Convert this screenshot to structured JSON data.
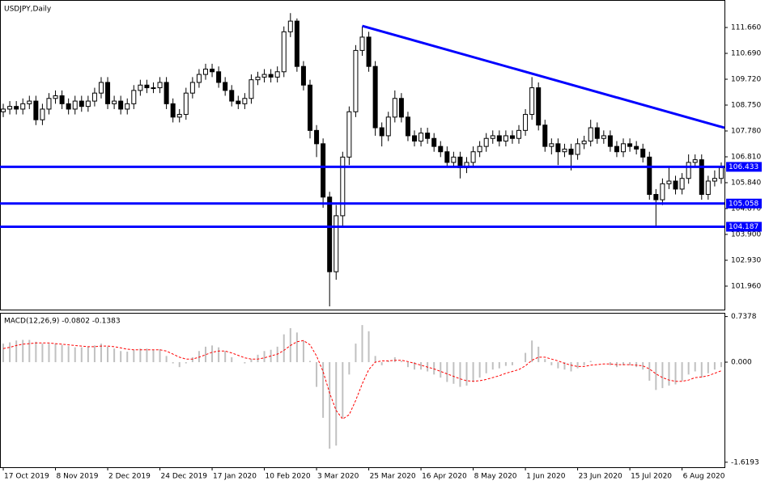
{
  "chart_data": {
    "type": "candlestick",
    "title": "USDJPY,Daily",
    "dates": [
      "17 Oct 2019",
      null,
      null,
      null,
      null,
      null,
      null,
      null,
      "8 Nov 2019",
      null,
      null,
      null,
      null,
      null,
      null,
      null,
      "2 Dec 2019",
      null,
      null,
      null,
      null,
      null,
      null,
      null,
      "24 Dec 2019",
      null,
      null,
      null,
      null,
      null,
      null,
      null,
      "17 Jan 2020",
      null,
      null,
      null,
      null,
      null,
      null,
      null,
      "10 Feb 2020",
      null,
      null,
      null,
      null,
      null,
      null,
      null,
      "3 Mar 2020",
      null,
      null,
      null,
      null,
      null,
      null,
      null,
      "25 Mar 2020",
      null,
      null,
      null,
      null,
      null,
      null,
      null,
      "16 Apr 2020",
      null,
      null,
      null,
      null,
      null,
      null,
      null,
      "8 May 2020",
      null,
      null,
      null,
      null,
      null,
      null,
      null,
      "1 Jun 2020",
      null,
      null,
      null,
      null,
      null,
      null,
      null,
      "23 Jun 2020",
      null,
      null,
      null,
      null,
      null,
      null,
      null,
      "15 Jul 2020",
      null,
      null,
      null,
      null,
      null,
      null,
      null,
      "6 Aug 2020",
      null,
      null,
      null,
      null,
      null,
      null
    ],
    "open": [
      108.5,
      108.6,
      108.7,
      108.6,
      108.8,
      108.9,
      108.2,
      108.6,
      109.0,
      109.1,
      108.8,
      108.6,
      108.9,
      108.7,
      108.9,
      109.2,
      109.6,
      108.8,
      108.9,
      108.6,
      108.8,
      109.3,
      109.5,
      109.4,
      109.4,
      109.6,
      108.8,
      108.3,
      108.4,
      109.2,
      109.6,
      109.9,
      110.1,
      110.0,
      109.6,
      109.3,
      108.9,
      108.8,
      109.0,
      109.7,
      109.8,
      109.9,
      109.8,
      110.0,
      111.5,
      111.9,
      110.2,
      109.5,
      107.8,
      107.3,
      105.3,
      102.5,
      104.6,
      106.8,
      108.5,
      110.8,
      111.3,
      110.2,
      107.9,
      107.6,
      108.3,
      109.0,
      108.3,
      107.6,
      107.4,
      107.7,
      107.5,
      107.2,
      107.0,
      106.6,
      106.8,
      106.4,
      106.6,
      107.0,
      107.2,
      107.5,
      107.6,
      107.4,
      107.6,
      107.5,
      107.8,
      108.4,
      109.4,
      108.0,
      107.2,
      107.3,
      107.0,
      107.1,
      106.9,
      107.3,
      107.4,
      107.9,
      107.5,
      107.6,
      107.2,
      107.0,
      107.3,
      107.2,
      107.1,
      106.8,
      105.4,
      105.2,
      105.8,
      105.9,
      105.6,
      106.0,
      106.6,
      106.7,
      105.4,
      105.9,
      106.0
    ],
    "high": [
      108.8,
      108.9,
      108.9,
      109.0,
      109.1,
      109.1,
      108.8,
      109.2,
      109.3,
      109.3,
      109.0,
      109.1,
      109.1,
      109.1,
      109.4,
      109.8,
      109.8,
      109.1,
      109.1,
      109.0,
      109.5,
      109.7,
      109.7,
      109.6,
      109.8,
      109.8,
      109.0,
      108.6,
      109.4,
      109.8,
      110.1,
      110.3,
      110.3,
      110.2,
      109.8,
      109.5,
      109.1,
      109.2,
      109.9,
      110.0,
      110.1,
      110.1,
      110.2,
      111.7,
      112.2,
      112.0,
      110.4,
      109.7,
      108.0,
      107.5,
      105.5,
      105.0,
      107.0,
      108.7,
      111.0,
      111.7,
      111.5,
      110.4,
      108.1,
      108.5,
      109.3,
      109.2,
      108.5,
      107.8,
      107.9,
      107.9,
      107.7,
      107.4,
      107.2,
      107.0,
      107.0,
      106.8,
      107.2,
      107.4,
      107.7,
      107.8,
      107.8,
      107.8,
      107.8,
      108.0,
      108.6,
      109.8,
      109.6,
      108.2,
      107.5,
      107.5,
      107.3,
      107.3,
      107.5,
      107.6,
      108.2,
      108.1,
      107.8,
      107.8,
      107.4,
      107.5,
      107.5,
      107.4,
      107.3,
      107.0,
      105.6,
      106.0,
      106.4,
      106.1,
      106.2,
      106.9,
      106.9,
      106.9,
      106.1,
      106.3,
      106.6
    ],
    "low": [
      108.3,
      108.4,
      108.4,
      108.4,
      108.6,
      108.0,
      108.0,
      108.4,
      108.8,
      108.6,
      108.4,
      108.4,
      108.5,
      108.5,
      108.7,
      109.0,
      108.6,
      108.6,
      108.4,
      108.4,
      108.6,
      109.1,
      109.2,
      109.2,
      109.2,
      108.6,
      108.1,
      108.1,
      108.2,
      109.0,
      109.4,
      109.7,
      109.8,
      109.4,
      109.1,
      108.7,
      108.6,
      108.6,
      108.8,
      109.5,
      109.6,
      109.6,
      109.6,
      109.8,
      111.3,
      110.0,
      109.3,
      107.5,
      106.8,
      104.9,
      101.2,
      102.2,
      104.2,
      106.5,
      108.3,
      110.6,
      110.0,
      107.6,
      107.2,
      107.4,
      108.1,
      108.1,
      107.4,
      107.2,
      107.2,
      107.3,
      107.0,
      106.8,
      106.4,
      106.4,
      106.0,
      106.2,
      106.4,
      106.8,
      107.0,
      107.3,
      107.2,
      107.2,
      107.3,
      107.3,
      107.6,
      108.2,
      107.8,
      107.0,
      106.9,
      106.5,
      106.8,
      106.3,
      106.7,
      107.1,
      107.2,
      107.3,
      107.3,
      107.0,
      106.8,
      106.8,
      107.0,
      106.9,
      106.6,
      105.2,
      104.2,
      105.0,
      105.6,
      105.4,
      105.4,
      105.8,
      106.4,
      105.2,
      105.2,
      105.7,
      105.8
    ],
    "close": [
      108.6,
      108.7,
      108.6,
      108.8,
      108.9,
      108.2,
      108.6,
      109.0,
      109.1,
      108.8,
      108.6,
      108.9,
      108.7,
      108.9,
      109.2,
      109.6,
      108.8,
      108.9,
      108.6,
      108.8,
      109.3,
      109.5,
      109.4,
      109.4,
      109.6,
      108.8,
      108.3,
      108.4,
      109.2,
      109.6,
      109.9,
      110.1,
      110.0,
      109.6,
      109.3,
      108.9,
      108.8,
      109.0,
      109.7,
      109.8,
      109.9,
      109.8,
      110.0,
      111.5,
      111.9,
      110.2,
      109.5,
      107.8,
      107.3,
      105.3,
      102.5,
      104.6,
      106.8,
      108.5,
      110.8,
      111.3,
      110.2,
      107.9,
      107.6,
      108.3,
      109.0,
      108.3,
      107.6,
      107.4,
      107.7,
      107.5,
      107.2,
      107.0,
      106.6,
      106.8,
      106.4,
      106.6,
      107.0,
      107.2,
      107.5,
      107.6,
      107.4,
      107.6,
      107.5,
      107.8,
      108.4,
      109.4,
      108.0,
      107.2,
      107.3,
      107.0,
      107.1,
      106.9,
      107.3,
      107.4,
      107.9,
      107.5,
      107.6,
      107.2,
      107.0,
      107.3,
      107.2,
      107.1,
      106.8,
      105.4,
      105.2,
      105.8,
      105.9,
      105.6,
      106.0,
      106.6,
      106.7,
      105.4,
      105.9,
      106.0,
      106.4
    ],
    "ylim": [
      101.08,
      112.54
    ],
    "yticks": [
      {
        "value": 101.96,
        "label": "101.960"
      },
      {
        "value": 102.93,
        "label": "102.930"
      },
      {
        "value": 103.9,
        "label": "103.900"
      },
      {
        "value": 104.87,
        "label": "104.870"
      },
      {
        "value": 105.84,
        "label": "105.840"
      },
      {
        "value": 106.81,
        "label": "106.810"
      },
      {
        "value": 107.78,
        "label": "107.780"
      },
      {
        "value": 108.75,
        "label": "108.750"
      },
      {
        "value": 109.72,
        "label": "109.720"
      },
      {
        "value": 110.69,
        "label": "110.690"
      },
      {
        "value": 111.66,
        "label": "111.660"
      }
    ],
    "levels": [
      106.433,
      105.058,
      104.187
    ],
    "level_color": "#0000ff",
    "trendline": {
      "x": [
        55,
        110.5
      ],
      "y": [
        111.72,
        107.9
      ]
    },
    "macd": {
      "title": "MACD(12,26,9) -0.0802 -0.1383",
      "histogram": {
        "color": "#c0c0c0",
        "values": [
          0.3,
          0.32,
          0.35,
          0.36,
          0.36,
          0.33,
          0.3,
          0.3,
          0.3,
          0.28,
          0.26,
          0.24,
          0.24,
          0.25,
          0.27,
          0.3,
          0.25,
          0.22,
          0.18,
          0.17,
          0.2,
          0.22,
          0.22,
          0.2,
          0.21,
          0.1,
          -0.02,
          -0.08,
          -0.02,
          0.08,
          0.18,
          0.25,
          0.27,
          0.24,
          0.18,
          0.08,
          0.0,
          -0.02,
          0.05,
          0.12,
          0.18,
          0.2,
          0.25,
          0.45,
          0.55,
          0.48,
          0.35,
          0.02,
          -0.4,
          -0.9,
          -1.4,
          -1.35,
          -0.9,
          -0.2,
          0.3,
          0.6,
          0.5,
          0.1,
          -0.05,
          0.02,
          0.08,
          0.02,
          -0.08,
          -0.12,
          -0.12,
          -0.15,
          -0.2,
          -0.25,
          -0.32,
          -0.35,
          -0.4,
          -0.38,
          -0.32,
          -0.25,
          -0.18,
          -0.12,
          -0.1,
          -0.06,
          -0.05,
          0.0,
          0.15,
          0.35,
          0.25,
          0.05,
          -0.05,
          -0.1,
          -0.12,
          -0.15,
          -0.1,
          -0.05,
          0.02,
          0.0,
          0.0,
          -0.05,
          -0.08,
          -0.05,
          -0.05,
          -0.08,
          -0.12,
          -0.3,
          -0.45,
          -0.42,
          -0.38,
          -0.36,
          -0.3,
          -0.2,
          -0.15,
          -0.25,
          -0.18,
          -0.12,
          -0.08
        ]
      },
      "signal": {
        "color": "#ff0000",
        "values": [
          0.22,
          0.24,
          0.27,
          0.29,
          0.3,
          0.31,
          0.31,
          0.31,
          0.3,
          0.29,
          0.28,
          0.27,
          0.26,
          0.25,
          0.25,
          0.26,
          0.26,
          0.25,
          0.23,
          0.21,
          0.2,
          0.2,
          0.2,
          0.2,
          0.2,
          0.18,
          0.13,
          0.08,
          0.05,
          0.05,
          0.08,
          0.12,
          0.16,
          0.18,
          0.18,
          0.15,
          0.11,
          0.07,
          0.05,
          0.05,
          0.07,
          0.1,
          0.13,
          0.19,
          0.27,
          0.33,
          0.35,
          0.28,
          0.1,
          -0.15,
          -0.5,
          -0.78,
          -0.92,
          -0.85,
          -0.62,
          -0.35,
          -0.12,
          0.0,
          0.02,
          0.02,
          0.03,
          0.03,
          0.01,
          -0.02,
          -0.05,
          -0.08,
          -0.11,
          -0.15,
          -0.19,
          -0.23,
          -0.27,
          -0.3,
          -0.31,
          -0.3,
          -0.28,
          -0.25,
          -0.22,
          -0.18,
          -0.15,
          -0.12,
          -0.06,
          0.03,
          0.08,
          0.08,
          0.05,
          0.02,
          -0.02,
          -0.05,
          -0.07,
          -0.07,
          -0.05,
          -0.04,
          -0.03,
          -0.03,
          -0.04,
          -0.04,
          -0.04,
          -0.05,
          -0.06,
          -0.11,
          -0.19,
          -0.25,
          -0.29,
          -0.31,
          -0.31,
          -0.29,
          -0.25,
          -0.24,
          -0.22,
          -0.18,
          -0.14
        ]
      },
      "ylim": [
        -1.7,
        0.785
      ],
      "yticks": [
        0.7378,
        {
          "value": 0,
          "label": "0.000"
        },
        -1.6193
      ]
    }
  }
}
